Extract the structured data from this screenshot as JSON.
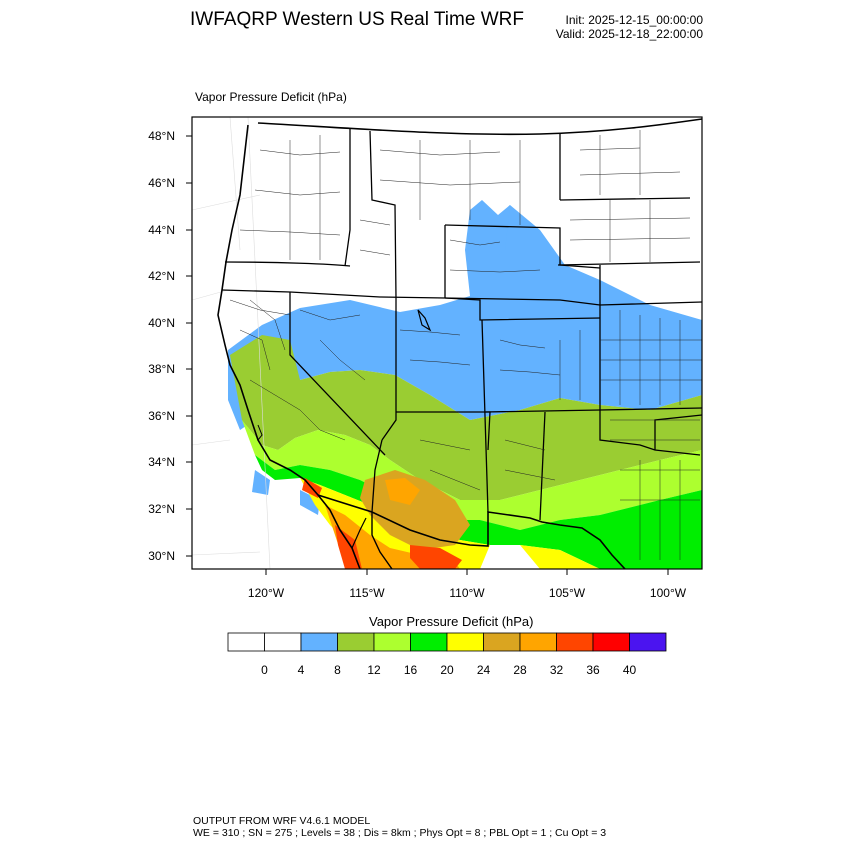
{
  "header": {
    "title": "IWFAQRP Western US Real Time WRF",
    "init": "Init: 2025-12-15_00:00:00",
    "valid": "Valid: 2025-12-18_22:00:00"
  },
  "field": {
    "title": "Vapor Pressure Deficit   (hPa)"
  },
  "axes": {
    "lat_labels": [
      "48°N",
      "46°N",
      "44°N",
      "42°N",
      "40°N",
      "38°N",
      "36°N",
      "34°N",
      "32°N",
      "30°N"
    ],
    "lon_labels": [
      "120°W",
      "115°W",
      "110°W",
      "105°W",
      "100°W"
    ]
  },
  "colorbar": {
    "title": "Vapor Pressure Deficit  (hPa)",
    "labels": [
      "0",
      "4",
      "8",
      "12",
      "16",
      "20",
      "24",
      "28",
      "32",
      "36",
      "40"
    ],
    "colors": [
      "#ffffff",
      "#ffffff",
      "#63b2ff",
      "#9acd32",
      "#adff2f",
      "#00ee00",
      "#ffff00",
      "#daa520",
      "#ffa500",
      "#ff4500",
      "#ff0000",
      "#4b14f0"
    ]
  },
  "footer": {
    "line1": "OUTPUT FROM WRF V4.6.1 MODEL",
    "line2": "WE = 310 ; SN = 275 ; Levels = 38 ; Dis = 8km ; Phys Opt = 8 ; PBL Opt = 1 ; Cu Opt = 3"
  }
}
